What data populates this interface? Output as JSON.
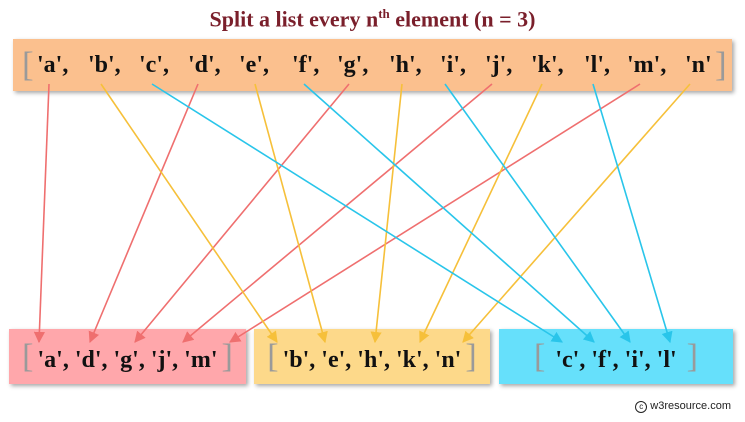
{
  "title": {
    "main": "Split a list every n",
    "sup": "th",
    "tail": " element  (n = 3)"
  },
  "source_list": {
    "open": "[",
    "close": "]",
    "items": [
      "'a',",
      "'b',",
      "'c',",
      "'d',",
      "'e',",
      "'f',",
      "'g',",
      "'h',",
      "'i',",
      "'j',",
      "'k',",
      "'l',",
      "'m',",
      "'n'"
    ]
  },
  "outputs": [
    {
      "open": "[",
      "content": "'a', 'd', 'g', 'j', 'm'",
      "close": "]",
      "background": "#ffa7ab",
      "arrow_color": "#ef6f6f"
    },
    {
      "open": "[",
      "content": "'b', 'e', 'h', 'k', 'n'",
      "close": "]",
      "background": "#fdd98a",
      "arrow_color": "#f6c03a"
    },
    {
      "open": "[",
      "content": "'c', 'f', 'i', 'l'",
      "close": "]",
      "background": "#66e0fb",
      "arrow_color": "#29c5ea"
    }
  ],
  "source_box_color": "#fbc08e",
  "credit": {
    "symbol": "c",
    "text": "w3resource.com"
  }
}
